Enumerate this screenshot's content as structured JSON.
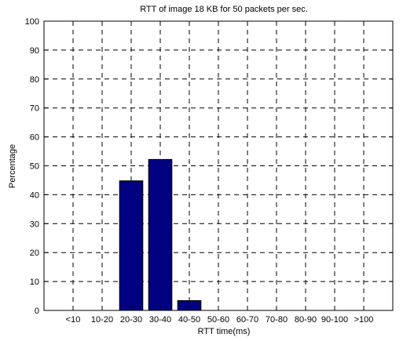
{
  "chart_data": {
    "type": "bar",
    "title": "RTT of image 18 KB for 50 packets per sec.",
    "xlabel": "RTT time(ms)",
    "ylabel": "Percentage",
    "categories": [
      "<10",
      "10-20",
      "20-30",
      "30-40",
      "40-50",
      "50-60",
      "60-70",
      "70-80",
      "80-90",
      "90-100",
      ">100"
    ],
    "values": [
      0,
      0,
      44.8,
      52.2,
      3.4,
      0,
      0,
      0,
      0,
      0,
      0
    ],
    "ylim": [
      0,
      100
    ],
    "yticks": [
      0,
      10,
      20,
      30,
      40,
      50,
      60,
      70,
      80,
      90,
      100
    ],
    "grid": true,
    "grid_style": "dashed",
    "bar_color": "#000080",
    "legend": "none"
  }
}
